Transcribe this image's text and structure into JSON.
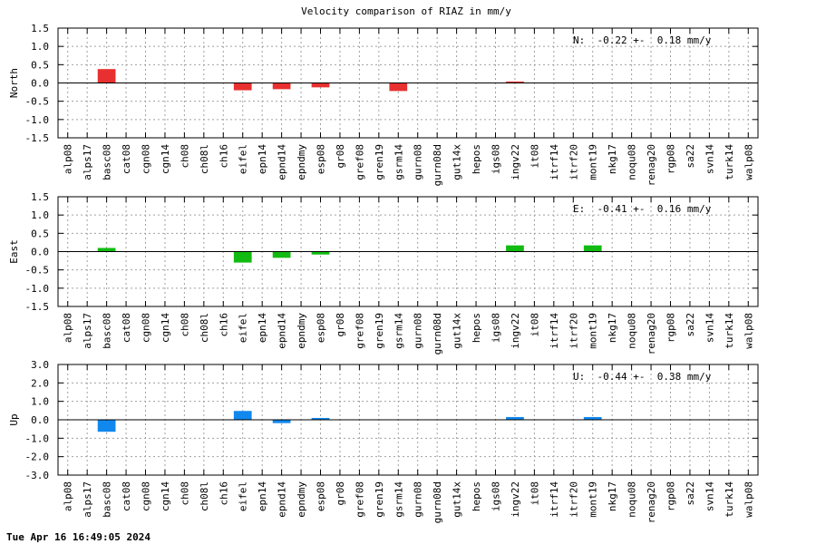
{
  "footer": "Tue Apr 16 16:49:05 2024",
  "chart_data": {
    "type": "bar",
    "title": "Velocity comparison of RIAZ in mm/y",
    "categories": [
      "alp08",
      "alps17",
      "basc08",
      "cat08",
      "cgn08",
      "cgn14",
      "ch08",
      "ch08l",
      "ch16",
      "eifel",
      "epn14",
      "epnd14",
      "epndmy",
      "esp08",
      "gr08",
      "gref08",
      "gren19",
      "gsrm14",
      "gurn08",
      "gurn08d",
      "gut14x",
      "hepos",
      "igs08",
      "ingv22",
      "it08",
      "itrf14",
      "itrf20",
      "mont19",
      "nkg17",
      "noqu08",
      "renag20",
      "rgp08",
      "sa22",
      "svn14",
      "turk14",
      "walp08"
    ],
    "grid": true,
    "panels": [
      {
        "ylabel": "North",
        "ylim": [
          -1.5,
          1.5
        ],
        "yticks": [
          -1.5,
          -1.0,
          -0.5,
          0.0,
          0.5,
          1.0,
          1.5
        ],
        "annotation": "N:  -0.22 +-  0.18 mm/y",
        "color": "#e83030",
        "values": [
          null,
          null,
          0.38,
          null,
          null,
          null,
          null,
          null,
          null,
          -0.2,
          null,
          -0.17,
          null,
          -0.12,
          null,
          null,
          null,
          -0.22,
          null,
          null,
          null,
          null,
          null,
          0.04,
          null,
          null,
          null,
          null,
          null,
          null,
          null,
          null,
          null,
          null,
          null,
          null
        ]
      },
      {
        "ylabel": "East",
        "ylim": [
          -1.5,
          1.5
        ],
        "yticks": [
          -1.5,
          -1.0,
          -0.5,
          0.0,
          0.5,
          1.0,
          1.5
        ],
        "annotation": "E:  -0.41 +-  0.16 mm/y",
        "color": "#11bb11",
        "values": [
          null,
          null,
          0.1,
          null,
          null,
          null,
          null,
          null,
          null,
          -0.3,
          null,
          -0.17,
          null,
          -0.08,
          null,
          null,
          null,
          null,
          null,
          null,
          null,
          null,
          null,
          0.17,
          null,
          null,
          null,
          0.17,
          null,
          null,
          null,
          null,
          null,
          null,
          null,
          null
        ]
      },
      {
        "ylabel": "Up",
        "ylim": [
          -3.0,
          3.0
        ],
        "yticks": [
          -3.0,
          -2.0,
          -1.0,
          0.0,
          1.0,
          2.0,
          3.0
        ],
        "annotation": "U:  -0.44 +-  0.38 mm/y",
        "color": "#1188ee",
        "values": [
          null,
          null,
          -0.65,
          null,
          null,
          null,
          null,
          null,
          null,
          0.48,
          null,
          -0.18,
          null,
          0.1,
          null,
          null,
          null,
          null,
          null,
          null,
          null,
          null,
          null,
          0.15,
          null,
          null,
          null,
          0.15,
          null,
          null,
          null,
          null,
          null,
          null,
          null,
          null
        ]
      }
    ]
  }
}
